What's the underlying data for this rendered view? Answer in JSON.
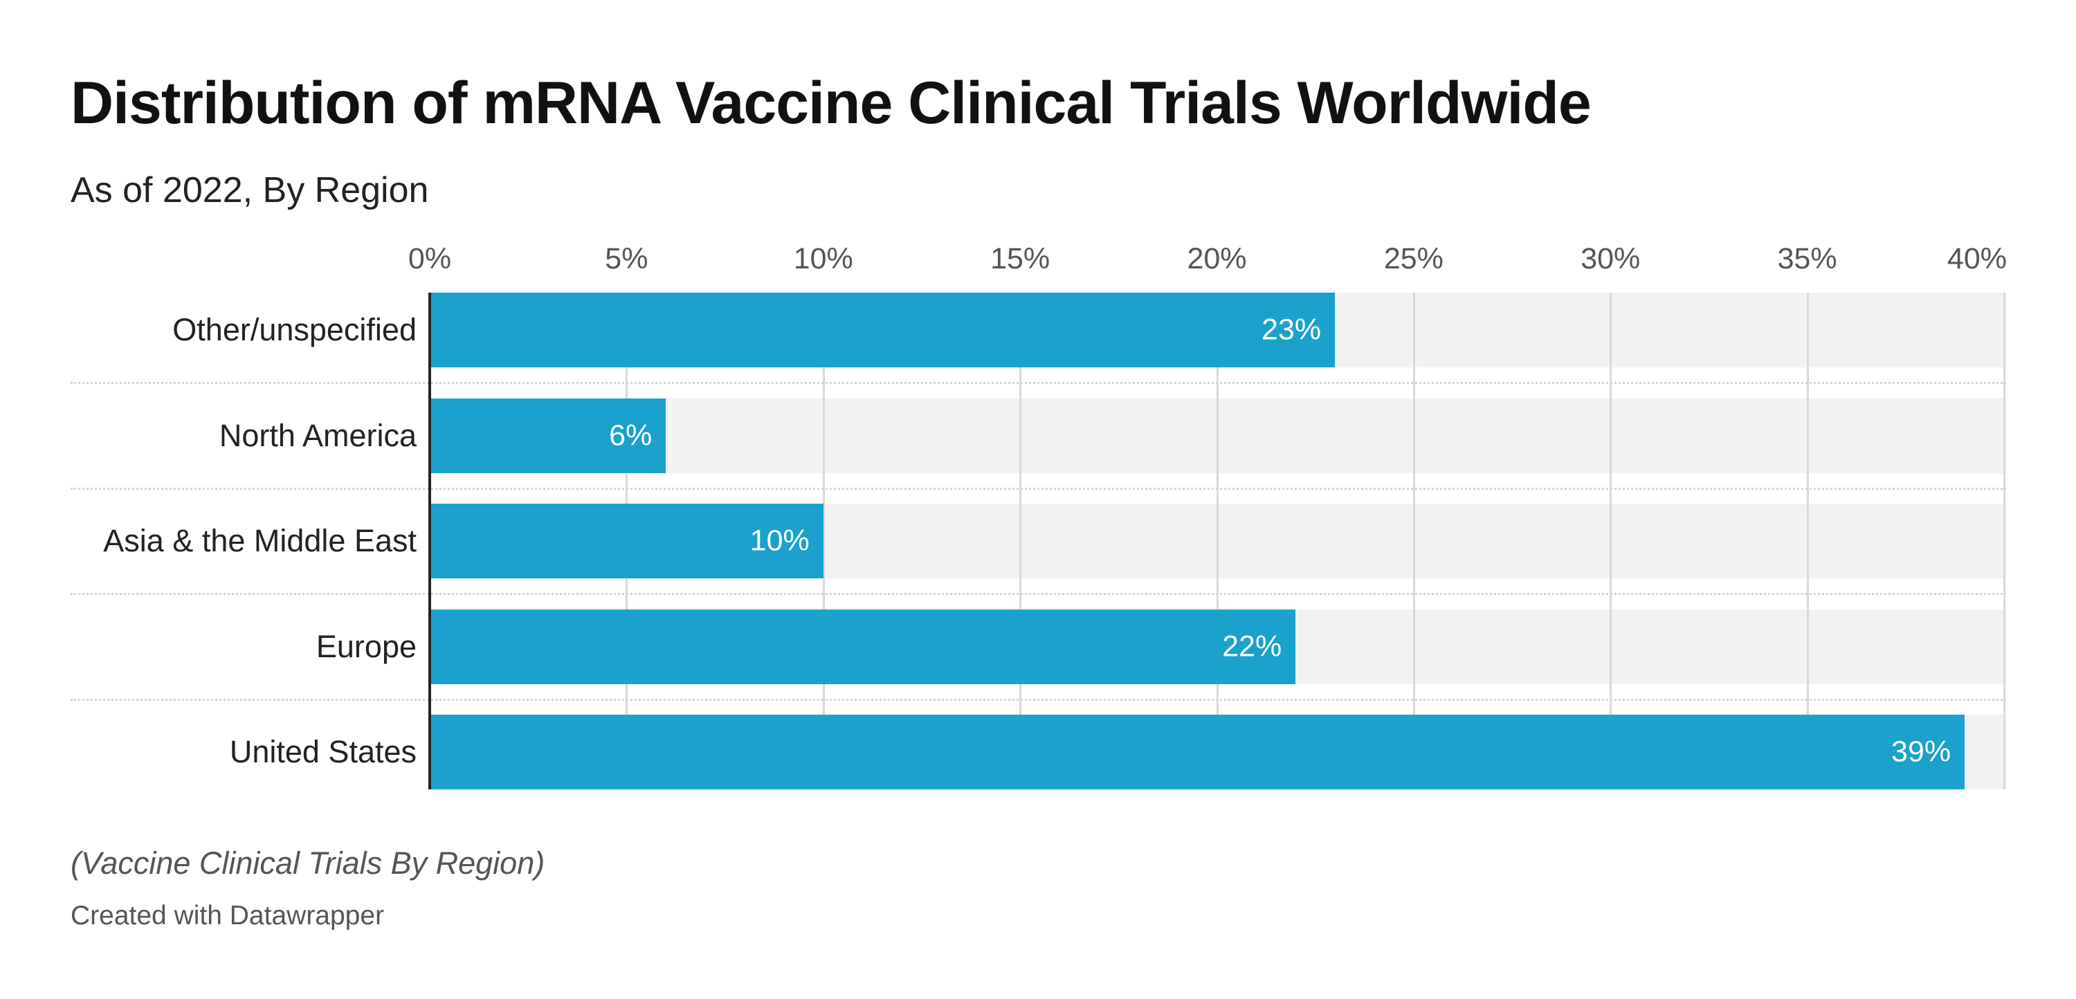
{
  "chart_data": {
    "type": "bar",
    "orientation": "horizontal",
    "title": "Distribution of mRNA Vaccine Clinical Trials Worldwide",
    "subtitle": "As of 2022, By Region",
    "categories": [
      "Other/unspecified",
      "North America",
      "Asia & the Middle East",
      "Europe",
      "United States"
    ],
    "values": [
      23,
      6,
      10,
      22,
      39
    ],
    "value_labels": [
      "23%",
      "6%",
      "10%",
      "22%",
      "39%"
    ],
    "xlim": [
      0,
      40
    ],
    "xticks": [
      0,
      5,
      10,
      15,
      20,
      25,
      30,
      35,
      40
    ],
    "xtick_labels": [
      "0%",
      "5%",
      "10%",
      "15%",
      "20%",
      "25%",
      "30%",
      "35%",
      "40%"
    ],
    "xlabel": "",
    "ylabel": "",
    "grid": true,
    "bar_color": "#1aa1cc",
    "background_band_color": "#f2f2f2",
    "notes": "(Vaccine Clinical Trials By Region)",
    "credit": "Created with Datawrapper"
  }
}
